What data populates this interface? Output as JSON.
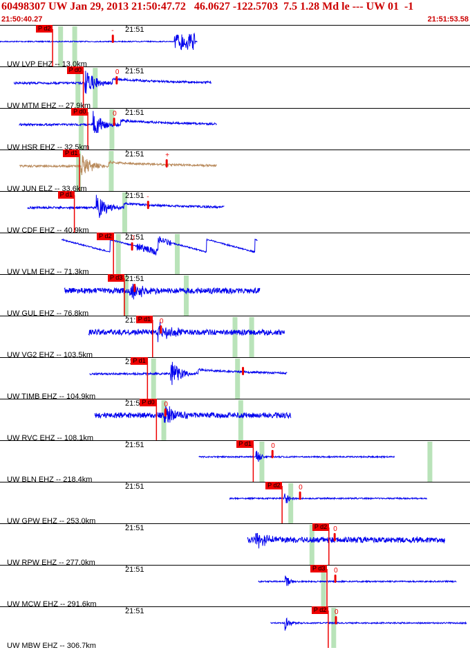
{
  "header": {
    "title": "60498307 UW Jan 29, 2013 21:50:47.72   46.0627 -122.5703  7.5 1.28 Md le --- UW 01  -1",
    "start_time": "21:50:40.27",
    "end_time": "21:51:53.58"
  },
  "time_axis": {
    "tick_label": "21:51",
    "start_s": 0,
    "end_s": 73.31,
    "tick_s": 19.73
  },
  "colors": {
    "trace": "#0000ee",
    "alt_trace": "#b8895a",
    "pick": "#ee0000",
    "window": "#b9e3b9",
    "title": "#cc0000",
    "separator": "#000000"
  },
  "panels": [
    {
      "label": "UW LVP EHZ -- 13.0km",
      "pick_label": "P d2",
      "pick_s": 8.2,
      "amp_s": 17.6,
      "amp_mark": "-",
      "windows_s": [
        9.4,
        11.6
      ],
      "sig_start": 0.0,
      "sig_end": 30.8,
      "event_s": 27.2,
      "kind": "burst"
    },
    {
      "label": "UW MTM EHZ -- 27.9km",
      "pick_label": "P d0",
      "pick_s": 13.0,
      "amp_s": 18.2,
      "amp_mark": "0",
      "windows_s": [
        12.1,
        14.8
      ],
      "sig_start": 2.2,
      "sig_end": 33.0,
      "event_s": 13.2,
      "kind": "decay"
    },
    {
      "label": "UW HSR EHZ -- 32.5km",
      "pick_label": "P d0",
      "pick_s": 13.7,
      "amp_s": 17.8,
      "amp_mark": "0",
      "windows_s": [
        12.6,
        17.4
      ],
      "sig_start": 3.0,
      "sig_end": 33.8,
      "event_s": 14.5,
      "kind": "decay"
    },
    {
      "label": "UW JUN ELZ -- 33.6km",
      "pick_label": "P d1",
      "pick_s": 12.4,
      "amp_s": 26.0,
      "amp_mark": "+",
      "windows_s": [
        12.2,
        17.3
      ],
      "sig_start": 3.0,
      "sig_end": 33.8,
      "event_s": 12.6,
      "kind": "brown"
    },
    {
      "label": "UW CDF EHZ -- 40.9km",
      "pick_label": "P d1",
      "pick_s": 11.6,
      "amp_s": 23.1,
      "amp_mark": "-",
      "windows_s": [
        19.4
      ],
      "sig_start": 4.3,
      "sig_end": 35.0,
      "event_s": 15.0,
      "kind": "decay"
    },
    {
      "label": "UW VLM EHZ -- 71.3km",
      "pick_label": "P d2",
      "pick_s": 17.7,
      "amp_s": 20.6,
      "amp_mark": "0",
      "windows_s": [
        18.4,
        27.6
      ],
      "sig_start": 9.6,
      "sig_end": 40.2,
      "event_s": 24.0,
      "kind": "ramps"
    },
    {
      "label": "UW GUL EHZ -- 76.8km",
      "pick_label": "P d3",
      "pick_s": 19.4,
      "amp_s": 21.0,
      "amp_mark": "",
      "windows_s": [
        19.6,
        29.0
      ],
      "sig_start": 10.0,
      "sig_end": 40.6,
      "event_s": 20.2,
      "kind": "noisy"
    },
    {
      "label": "UW VG2 EHZ -- 103.5km",
      "pick_label": "P d1",
      "pick_s": 23.8,
      "amp_s": 25.1,
      "amp_mark": "0",
      "windows_s": [
        36.6,
        39.2
      ],
      "sig_start": 13.8,
      "sig_end": 44.4,
      "event_s": 24.6,
      "kind": "noisy"
    },
    {
      "label": "UW TIMB EHZ -- 104.9km",
      "pick_label": "P d1",
      "pick_s": 23.0,
      "amp_s": 37.9,
      "amp_mark": "",
      "windows_s": [
        23.9,
        37.0
      ],
      "sig_start": 14.0,
      "sig_end": 44.8,
      "event_s": 26.6,
      "kind": "decay"
    },
    {
      "label": "UW RVC EHZ -- 108.1km",
      "pick_label": "P d0",
      "pick_s": 24.4,
      "amp_s": 25.8,
      "amp_mark": "0",
      "windows_s": [
        25.5,
        37.5
      ],
      "sig_start": 14.8,
      "sig_end": 45.4,
      "event_s": 25.6,
      "kind": "noisy"
    },
    {
      "label": "UW BLN EHZ -- 218.4km",
      "pick_label": "P d1",
      "pick_s": 39.5,
      "amp_s": 42.5,
      "amp_mark": "0",
      "windows_s": [
        40.8,
        67.0
      ],
      "sig_start": 31.0,
      "sig_end": 61.6,
      "event_s": 39.9,
      "kind": "quiet"
    },
    {
      "label": "UW GPW EHZ -- 253.0km",
      "pick_label": "P d2",
      "pick_s": 44.0,
      "amp_s": 46.8,
      "amp_mark": "0",
      "windows_s": [
        45.3
      ],
      "sig_start": 35.8,
      "sig_end": 66.6,
      "event_s": 44.3,
      "kind": "quiet"
    },
    {
      "label": "UW RPW EHZ -- 277.0km",
      "pick_label": "P d2",
      "pick_s": 51.3,
      "amp_s": 52.2,
      "amp_mark": "0",
      "windows_s": [
        48.6
      ],
      "sig_start": 38.6,
      "sig_end": 69.4,
      "event_s": 39.8,
      "kind": "noisy"
    },
    {
      "label": "UW MCW EHZ -- 291.6km",
      "pick_label": "P d3",
      "pick_s": 51.0,
      "amp_s": 52.3,
      "amp_mark": "0",
      "windows_s": [
        50.4
      ],
      "sig_start": 40.3,
      "sig_end": 71.2,
      "event_s": 44.4,
      "kind": "quiet"
    },
    {
      "label": "UW MBW EHZ -- 306.7km",
      "pick_label": "P d2",
      "pick_s": 51.2,
      "amp_s": 52.4,
      "amp_mark": "0",
      "windows_s": [
        52.0
      ],
      "sig_start": 42.2,
      "sig_end": 72.8,
      "event_s": 44.4,
      "kind": "quiet"
    }
  ]
}
